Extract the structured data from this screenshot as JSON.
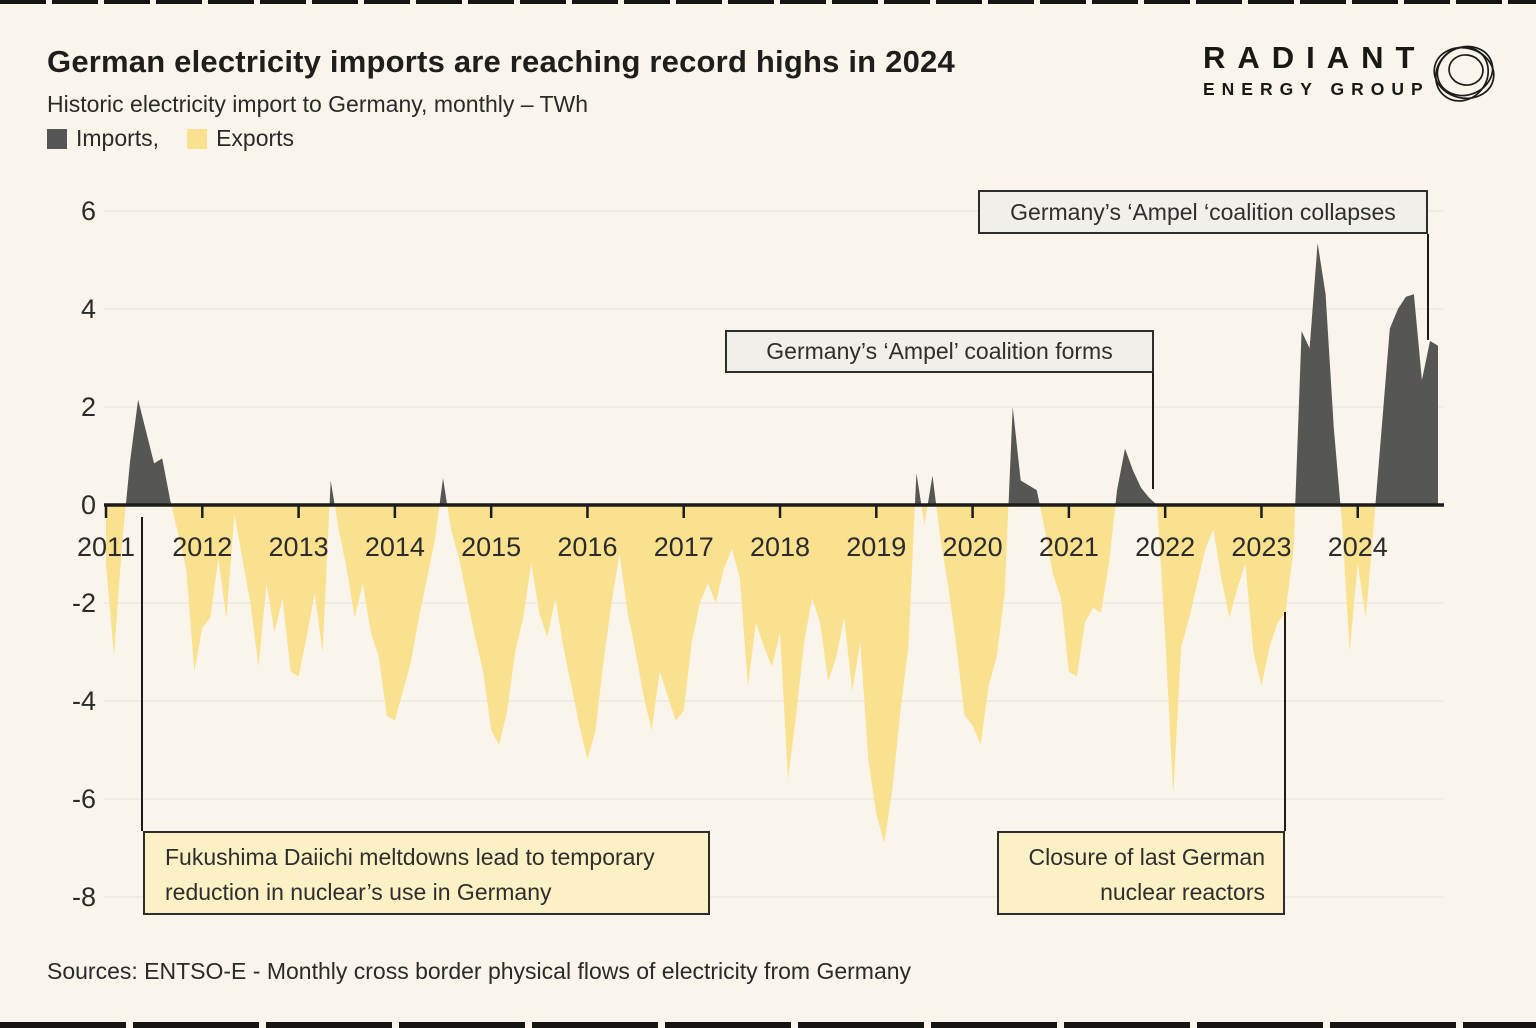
{
  "header": {
    "title": "German electricity imports are reaching record highs in 2024",
    "subtitle": "Historic electricity import to Germany, monthly – TWh"
  },
  "legend": {
    "imports_label": "Imports,",
    "exports_label": "Exports"
  },
  "logo": {
    "name": "RADIANT",
    "tagline": "ENERGY GROUP"
  },
  "footer": {
    "source": "Sources: ENTSO-E - Monthly cross border physical flows of electricity from Germany"
  },
  "colors": {
    "background": "#FAF5EB",
    "imports_fill": "#565655",
    "exports_fill": "#F9E190",
    "axis_ink": "#1c1c1a",
    "gridline": "#ECEAE2",
    "annotation_gray_bg": "#F1EFE9",
    "annotation_yellow_bg": "#FCF0C5"
  },
  "annotations": [
    {
      "id": "ampel-collapses",
      "style": "gray",
      "align": "center",
      "lines": [
        "Germany’s ‘Ampel ‘coalition collapses"
      ]
    },
    {
      "id": "ampel-forms",
      "style": "gray",
      "align": "center",
      "lines": [
        "Germany’s ‘Ampel’  coalition forms"
      ]
    },
    {
      "id": "fukushima",
      "style": "yellow",
      "align": "left",
      "lines": [
        "Fukushima Daiichi meltdowns lead to temporary",
        "reduction in nuclear’s use in Germany"
      ]
    },
    {
      "id": "nuclear-closure",
      "style": "yellow",
      "align": "right",
      "lines": [
        "Closure of last German",
        "nuclear reactors"
      ]
    }
  ],
  "chart_data": {
    "type": "area",
    "title": "German electricity imports are reaching record highs in 2024",
    "subtitle": "Historic electricity import to Germany, monthly – TWh",
    "unit": "TWh",
    "x_start": "2011-01",
    "x_end": "2024-11",
    "xlabel": "",
    "ylabel": "TWh",
    "ylim": [
      -8.3,
      6.4
    ],
    "grid": "horizontal-faint",
    "y_ticks": [
      6,
      4,
      2,
      0,
      -2,
      -4,
      -6,
      -8
    ],
    "x_tick_years": [
      2011,
      2012,
      2013,
      2014,
      2015,
      2016,
      2017,
      2018,
      2019,
      2020,
      2021,
      2022,
      2023,
      2024
    ],
    "series": [
      {
        "name": "Imports",
        "sign": "positive",
        "color": "#565655"
      },
      {
        "name": "Exports",
        "sign": "negative",
        "color": "#F9E190"
      }
    ],
    "series_monthly": [
      {
        "year": 2011,
        "values": [
          -1.2,
          -3.1,
          -0.8,
          0.9,
          2.15,
          1.5,
          0.85,
          0.95,
          0.1,
          -0.6,
          -1.3,
          -3.4
        ]
      },
      {
        "year": 2012,
        "values": [
          -2.5,
          -2.3,
          -1.1,
          -2.3,
          -0.2,
          -1.1,
          -2.0,
          -3.3,
          -1.6,
          -2.6,
          -1.9,
          -3.4
        ]
      },
      {
        "year": 2013,
        "values": [
          -3.5,
          -2.7,
          -1.8,
          -3.0,
          0.5,
          -0.5,
          -1.3,
          -2.3,
          -1.6,
          -2.6,
          -3.1,
          -4.3
        ]
      },
      {
        "year": 2014,
        "values": [
          -4.4,
          -3.8,
          -3.2,
          -2.3,
          -1.5,
          -0.7,
          0.55,
          -0.5,
          -1.1,
          -1.9,
          -2.7,
          -3.4
        ]
      },
      {
        "year": 2015,
        "values": [
          -4.6,
          -4.9,
          -4.2,
          -3.0,
          -2.3,
          -1.2,
          -2.2,
          -2.7,
          -1.9,
          -2.9,
          -3.7,
          -4.5
        ]
      },
      {
        "year": 2016,
        "values": [
          -5.2,
          -4.6,
          -3.2,
          -2.0,
          -1.0,
          -2.2,
          -3.0,
          -3.9,
          -4.6,
          -3.4,
          -3.9,
          -4.4
        ]
      },
      {
        "year": 2017,
        "values": [
          -4.2,
          -2.8,
          -2.0,
          -1.6,
          -2.0,
          -1.3,
          -0.9,
          -1.5,
          -3.7,
          -2.4,
          -2.9,
          -3.3
        ]
      },
      {
        "year": 2018,
        "values": [
          -2.6,
          -5.6,
          -4.3,
          -2.8,
          -1.9,
          -2.4,
          -3.6,
          -3.1,
          -2.3,
          -3.8,
          -2.8,
          -5.2
        ]
      },
      {
        "year": 2019,
        "values": [
          -6.3,
          -6.9,
          -5.8,
          -4.2,
          -2.9,
          0.65,
          -0.4,
          0.6,
          -0.7,
          -1.7,
          -2.9,
          -4.3
        ]
      },
      {
        "year": 2020,
        "values": [
          -4.5,
          -4.9,
          -3.7,
          -3.1,
          -1.8,
          2.0,
          0.5,
          0.4,
          0.3,
          -0.5,
          -1.4,
          -1.9
        ]
      },
      {
        "year": 2021,
        "values": [
          -3.4,
          -3.5,
          -2.4,
          -2.1,
          -2.2,
          -1.2,
          0.3,
          1.15,
          0.7,
          0.35,
          0.15,
          0.0
        ]
      },
      {
        "year": 2022,
        "values": [
          -2.7,
          -5.9,
          -2.9,
          -2.3,
          -1.6,
          -0.9,
          -0.5,
          -1.5,
          -2.3,
          -1.7,
          -1.2,
          -3.0
        ]
      },
      {
        "year": 2023,
        "values": [
          -3.7,
          -2.9,
          -2.4,
          -2.2,
          -0.9,
          3.55,
          3.2,
          5.35,
          4.3,
          1.6,
          -0.3,
          -3.0
        ]
      },
      {
        "year": 2024,
        "values": [
          -1.2,
          -2.3,
          -0.4,
          1.6,
          3.6,
          4.0,
          4.25,
          4.3,
          2.55,
          3.35,
          3.25
        ]
      }
    ]
  }
}
